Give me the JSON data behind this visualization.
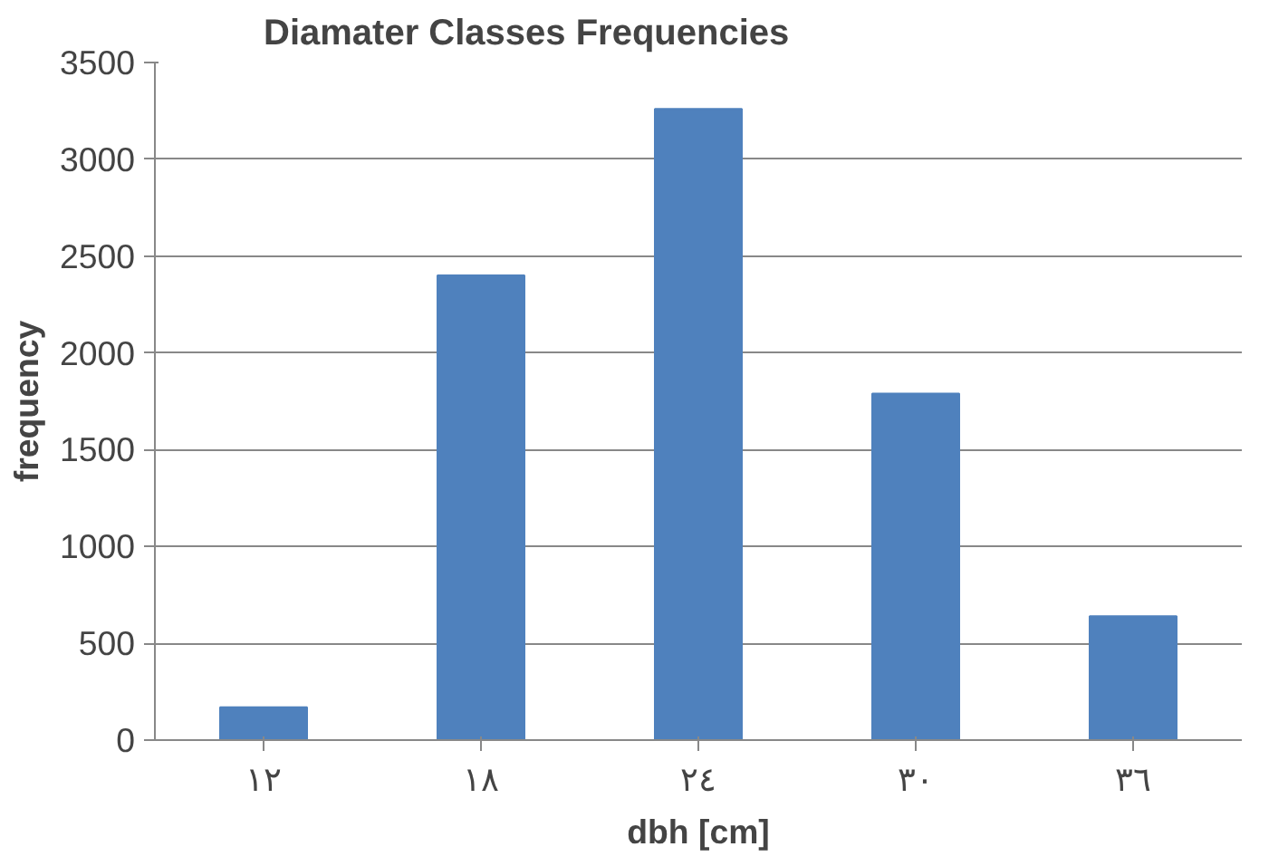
{
  "chart_data": {
    "type": "bar",
    "title": "Diamater Classes Frequencies",
    "xlabel": "dbh [cm]",
    "ylabel": "frequency",
    "categories": [
      "١٢",
      "١٨",
      "٢٤",
      "٣٠",
      "٣٦"
    ],
    "values": [
      170,
      2400,
      3260,
      1790,
      640
    ],
    "color": "#4f81bd",
    "ylim": [
      0,
      3500
    ],
    "yticks": [
      0,
      500,
      1000,
      1500,
      2000,
      2500,
      3000,
      3500
    ],
    "grid": "y"
  }
}
